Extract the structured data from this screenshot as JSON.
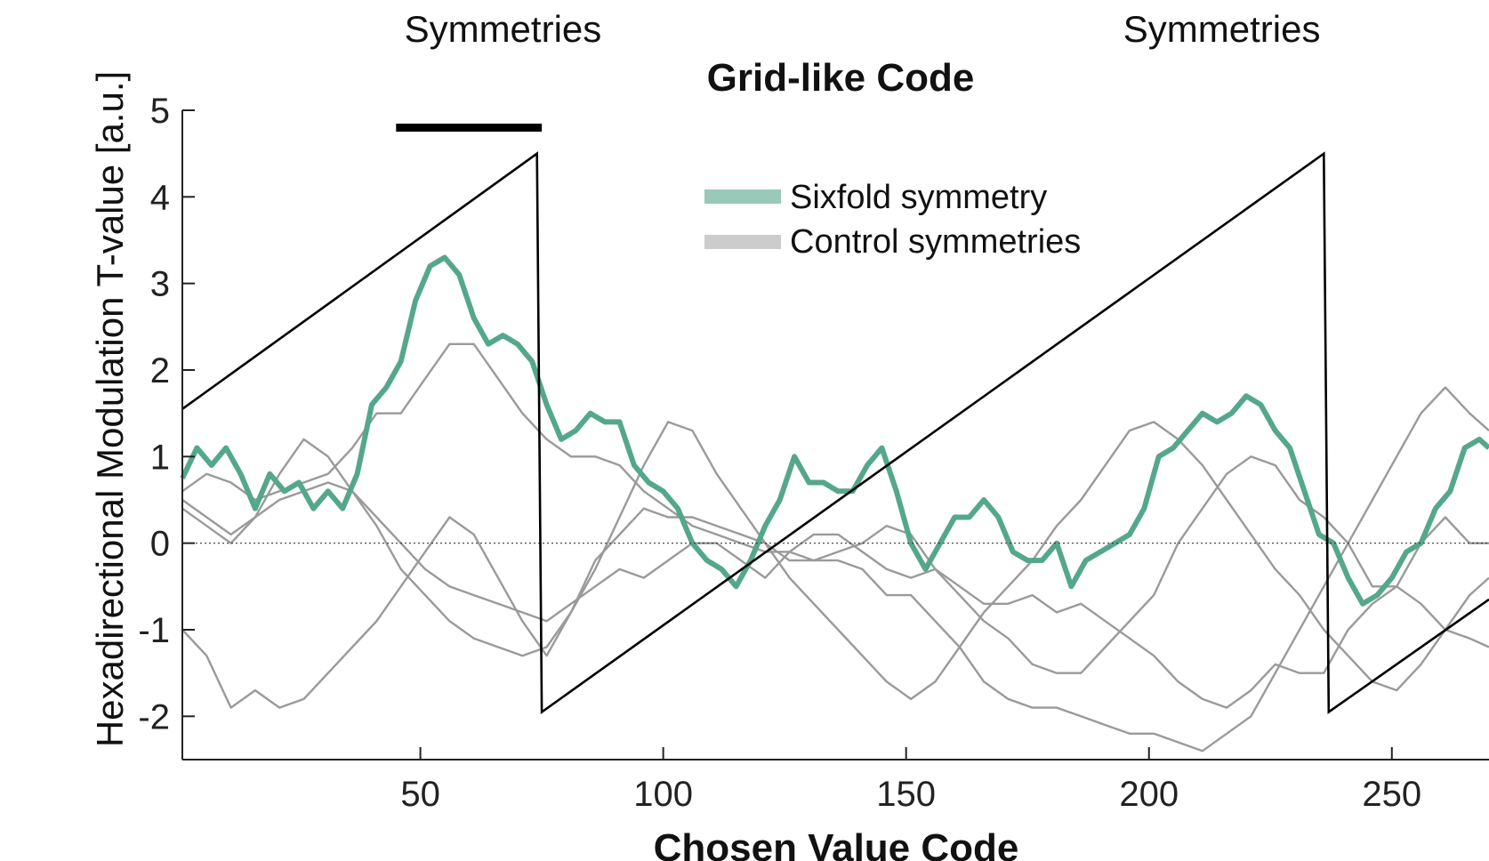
{
  "chart_data": {
    "type": "line",
    "title": "Grid-like Code",
    "xlabel": "Chosen Value Code",
    "ylabel": "Hexadirectional Modulation T-value [a.u.]",
    "xlim": [
      1,
      270
    ],
    "ylim": [
      -2.5,
      5
    ],
    "xticks": [
      50,
      100,
      150,
      200,
      250
    ],
    "yticks": [
      5,
      4,
      3,
      2,
      1,
      0,
      -1,
      -2
    ],
    "grid": false,
    "legend_position": "top-center",
    "legend": [
      {
        "label": "Sixfold symmetry",
        "color": "#99c9b8"
      },
      {
        "label": "Control symmetries",
        "color": "#cccccc"
      }
    ],
    "annotations": [
      {
        "text": "Symmetries",
        "x": 67
      },
      {
        "text": "Symmetries",
        "x": 215
      }
    ],
    "significance_bar": {
      "x": [
        45,
        75
      ],
      "y": 4.8
    },
    "zero_line": 0,
    "colors": {
      "sixfold": "#55a78c",
      "control": "#9a9a9a",
      "sawtooth": "#000000"
    },
    "sawtooth": {
      "x": [
        1,
        74,
        75,
        236,
        237,
        270
      ],
      "y": [
        1.55,
        4.5,
        -1.95,
        4.5,
        -1.95,
        -0.65
      ]
    },
    "series": [
      {
        "name": "Sixfold symmetry",
        "x": [
          1,
          4,
          7,
          10,
          13,
          16,
          19,
          22,
          25,
          28,
          31,
          34,
          37,
          40,
          43,
          46,
          49,
          52,
          55,
          58,
          61,
          64,
          67,
          70,
          73,
          76,
          79,
          82,
          85,
          88,
          91,
          94,
          97,
          100,
          103,
          106,
          109,
          112,
          115,
          118,
          121,
          124,
          127,
          130,
          133,
          136,
          139,
          142,
          145,
          148,
          151,
          154,
          157,
          160,
          163,
          166,
          169,
          172,
          175,
          178,
          181,
          184,
          187,
          190,
          193,
          196,
          199,
          202,
          205,
          208,
          211,
          214,
          217,
          220,
          223,
          226,
          229,
          232,
          235,
          238,
          241,
          244,
          247,
          250,
          253,
          256,
          259,
          262,
          265,
          268,
          270
        ],
        "y": [
          0.75,
          1.1,
          0.9,
          1.1,
          0.8,
          0.4,
          0.8,
          0.6,
          0.7,
          0.4,
          0.6,
          0.4,
          0.8,
          1.6,
          1.8,
          2.1,
          2.8,
          3.2,
          3.3,
          3.1,
          2.6,
          2.3,
          2.4,
          2.3,
          2.1,
          1.6,
          1.2,
          1.3,
          1.5,
          1.4,
          1.4,
          0.9,
          0.7,
          0.6,
          0.4,
          0.0,
          -0.2,
          -0.3,
          -0.5,
          -0.2,
          0.2,
          0.5,
          1.0,
          0.7,
          0.7,
          0.6,
          0.6,
          0.9,
          1.1,
          0.6,
          0.0,
          -0.3,
          0.0,
          0.3,
          0.3,
          0.5,
          0.3,
          -0.1,
          -0.2,
          -0.2,
          0.0,
          -0.5,
          -0.2,
          -0.1,
          0.0,
          0.1,
          0.4,
          1.0,
          1.1,
          1.3,
          1.5,
          1.4,
          1.5,
          1.7,
          1.6,
          1.3,
          1.1,
          0.6,
          0.1,
          0.0,
          -0.4,
          -0.7,
          -0.6,
          -0.4,
          -0.1,
          0.0,
          0.4,
          0.6,
          1.1,
          1.2,
          1.1
        ]
      },
      {
        "x": [
          1,
          6,
          11,
          16,
          21,
          26,
          31,
          36,
          41,
          46,
          51,
          56,
          61,
          66,
          71,
          76,
          81,
          86,
          91,
          96,
          101,
          106,
          111,
          116,
          121,
          126,
          131,
          136,
          141,
          146,
          151,
          156,
          161,
          166,
          171,
          176,
          181,
          186,
          191,
          196,
          201,
          206,
          211,
          216,
          221,
          226,
          231,
          236,
          241,
          246,
          251,
          256,
          261,
          266,
          270
        ],
        "y": [
          0.6,
          0.8,
          0.7,
          0.5,
          0.6,
          0.7,
          0.8,
          1.1,
          1.5,
          1.5,
          1.9,
          2.3,
          2.3,
          1.9,
          1.5,
          1.2,
          1.0,
          1.0,
          0.9,
          0.6,
          0.4,
          0.2,
          0.1,
          0.0,
          -0.1,
          -0.1,
          -0.2,
          -0.1,
          0.0,
          0.2,
          0.1,
          -0.3,
          -0.6,
          -0.9,
          -1.1,
          -1.4,
          -1.5,
          -1.5,
          -1.2,
          -0.9,
          -0.6,
          0.0,
          0.4,
          0.8,
          1.0,
          0.9,
          0.5,
          0.3,
          0.0,
          -0.5,
          -0.5,
          0.0,
          0.3,
          0.0,
          0.0
        ]
      },
      {
        "x": [
          1,
          6,
          11,
          16,
          21,
          26,
          31,
          36,
          41,
          46,
          51,
          56,
          61,
          66,
          71,
          76,
          81,
          86,
          91,
          96,
          101,
          106,
          111,
          116,
          121,
          126,
          131,
          136,
          141,
          146,
          151,
          156,
          161,
          166,
          171,
          176,
          181,
          186,
          191,
          196,
          201,
          206,
          211,
          216,
          221,
          226,
          231,
          236,
          241,
          246,
          251,
          256,
          261,
          266,
          270
        ],
        "y": [
          0.4,
          0.2,
          0.0,
          0.3,
          0.5,
          0.6,
          0.7,
          0.6,
          0.3,
          0.0,
          -0.3,
          -0.5,
          -0.6,
          -0.7,
          -0.8,
          -0.9,
          -0.7,
          -0.5,
          -0.3,
          -0.4,
          -0.2,
          0.0,
          0.0,
          -0.2,
          -0.4,
          -0.1,
          0.1,
          0.1,
          -0.1,
          -0.3,
          -0.4,
          -0.3,
          -0.5,
          -0.7,
          -0.7,
          -0.6,
          -0.8,
          -0.7,
          -0.9,
          -1.1,
          -1.3,
          -1.6,
          -1.8,
          -1.9,
          -1.7,
          -1.4,
          -1.5,
          -1.5,
          -1.0,
          -0.7,
          -0.5,
          -0.7,
          -1.0,
          -1.1,
          -1.2
        ]
      },
      {
        "x": [
          1,
          6,
          11,
          16,
          21,
          26,
          31,
          36,
          41,
          46,
          51,
          56,
          61,
          66,
          71,
          76,
          81,
          86,
          91,
          96,
          101,
          106,
          111,
          116,
          121,
          126,
          131,
          136,
          141,
          146,
          151,
          156,
          161,
          166,
          171,
          176,
          181,
          186,
          191,
          196,
          201,
          206,
          211,
          216,
          221,
          226,
          231,
          236,
          241,
          246,
          251,
          256,
          261,
          266,
          270
        ],
        "y": [
          -1.0,
          -1.3,
          -1.9,
          -1.7,
          -1.9,
          -1.8,
          -1.5,
          -1.2,
          -0.9,
          -0.5,
          -0.1,
          0.3,
          0.1,
          -0.4,
          -0.9,
          -1.3,
          -0.8,
          -0.2,
          0.1,
          0.4,
          0.3,
          0.3,
          0.2,
          0.1,
          0.0,
          -0.2,
          -0.2,
          -0.2,
          -0.3,
          -0.6,
          -0.6,
          -0.9,
          -1.2,
          -1.6,
          -1.8,
          -1.9,
          -1.9,
          -2.0,
          -2.1,
          -2.2,
          -2.2,
          -2.3,
          -2.4,
          -2.2,
          -2.0,
          -1.5,
          -1.0,
          -0.5,
          0.0,
          0.5,
          1.0,
          1.5,
          1.8,
          1.5,
          1.3
        ]
      },
      {
        "x": [
          1,
          6,
          11,
          16,
          21,
          26,
          31,
          36,
          41,
          46,
          51,
          56,
          61,
          66,
          71,
          76,
          81,
          86,
          91,
          96,
          101,
          106,
          111,
          116,
          121,
          126,
          131,
          136,
          141,
          146,
          151,
          156,
          161,
          166,
          171,
          176,
          181,
          186,
          191,
          196,
          201,
          206,
          211,
          216,
          221,
          226,
          231,
          236,
          241,
          246,
          251,
          256,
          261,
          266,
          270
        ],
        "y": [
          0.5,
          0.3,
          0.1,
          0.3,
          0.8,
          1.2,
          1.0,
          0.6,
          0.2,
          -0.3,
          -0.6,
          -0.9,
          -1.1,
          -1.2,
          -1.3,
          -1.2,
          -0.8,
          -0.3,
          0.3,
          0.9,
          1.4,
          1.3,
          0.8,
          0.4,
          0.0,
          -0.4,
          -0.7,
          -1.0,
          -1.3,
          -1.6,
          -1.8,
          -1.6,
          -1.2,
          -0.8,
          -0.5,
          -0.2,
          0.2,
          0.5,
          0.9,
          1.3,
          1.4,
          1.2,
          0.9,
          0.5,
          0.1,
          -0.3,
          -0.6,
          -1.0,
          -1.3,
          -1.6,
          -1.7,
          -1.4,
          -1.0,
          -0.6,
          -0.4
        ]
      }
    ]
  }
}
